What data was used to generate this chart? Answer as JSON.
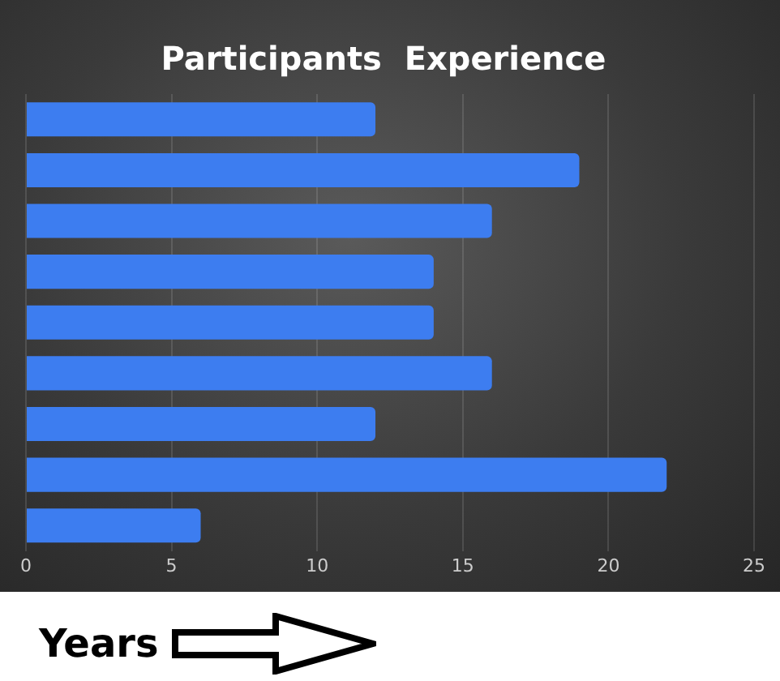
{
  "chart_data": {
    "type": "bar",
    "orientation": "horizontal",
    "title": "Participants  Experience",
    "xlabel": "Years",
    "categories": [
      null,
      null,
      null,
      null,
      null,
      null,
      null,
      null,
      null
    ],
    "values": [
      12,
      19,
      16,
      14,
      14,
      16,
      12,
      22,
      6
    ],
    "color": "#3d7df0",
    "xlim": [
      0,
      25
    ],
    "xticks": [
      0,
      5,
      10,
      15,
      20,
      25
    ],
    "grid": "x",
    "legend": false,
    "tick_labels": "x"
  }
}
